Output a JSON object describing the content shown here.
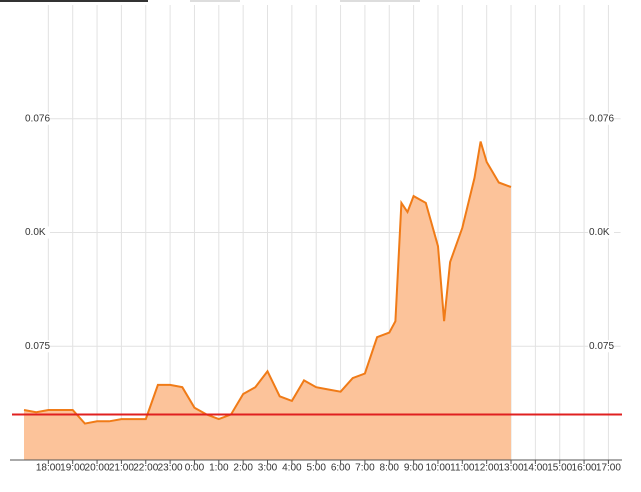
{
  "chart_data": {
    "type": "area",
    "x": [
      0,
      0.5,
      1,
      1.5,
      2,
      2.5,
      3,
      3.5,
      4,
      4.5,
      5,
      5.5,
      6,
      6.5,
      7,
      7.5,
      8,
      8.5,
      9,
      9.5,
      10,
      10.5,
      11,
      11.5,
      12,
      12.5,
      13,
      13.5,
      14,
      14.5,
      15,
      15.25,
      15.5,
      15.75,
      16,
      16.5,
      17,
      17.25,
      17.5,
      18,
      18.5,
      18.75,
      19,
      19.5,
      20
    ],
    "values": [
      0.07472,
      0.07471,
      0.07472,
      0.07472,
      0.07472,
      0.07466,
      0.07467,
      0.07467,
      0.07468,
      0.07468,
      0.07468,
      0.07483,
      0.07483,
      0.07482,
      0.07473,
      0.0747,
      0.07468,
      0.0747,
      0.07479,
      0.07482,
      0.07489,
      0.07478,
      0.07476,
      0.07485,
      0.07482,
      0.07481,
      0.0748,
      0.07486,
      0.07488,
      0.07504,
      0.07506,
      0.07511,
      0.07563,
      0.07559,
      0.07566,
      0.07563,
      0.07544,
      0.07511,
      0.07537,
      0.07552,
      0.07574,
      0.0759,
      0.07581,
      0.07572,
      0.0757
    ],
    "color": "#f07b17",
    "fill": "#fcc39a",
    "reference_line": 0.0747,
    "reference_color": "#e02020",
    "xlim": [
      0,
      24.5
    ],
    "xticks": [
      {
        "value": 1,
        "label": "18:00"
      },
      {
        "value": 2,
        "label": "19:00"
      },
      {
        "value": 3,
        "label": "20:00"
      },
      {
        "value": 4,
        "label": "21:00"
      },
      {
        "value": 5,
        "label": "22:00"
      },
      {
        "value": 6,
        "label": "23:00"
      },
      {
        "value": 7,
        "label": "0:00"
      },
      {
        "value": 8,
        "label": "1:00"
      },
      {
        "value": 9,
        "label": "2:00"
      },
      {
        "value": 10,
        "label": "3:00"
      },
      {
        "value": 11,
        "label": "4:00"
      },
      {
        "value": 12,
        "label": "5:00"
      },
      {
        "value": 13,
        "label": "6:00"
      },
      {
        "value": 14,
        "label": "7:00"
      },
      {
        "value": 15,
        "label": "8:00"
      },
      {
        "value": 16,
        "label": "9:00"
      },
      {
        "value": 17,
        "label": "10:00"
      },
      {
        "value": 18,
        "label": "11:00"
      },
      {
        "value": 19,
        "label": "12:00"
      },
      {
        "value": 20,
        "label": "13:00"
      },
      {
        "value": 21,
        "label": "14:00"
      },
      {
        "value": 22,
        "label": "15:00"
      },
      {
        "value": 23,
        "label": "16:00"
      },
      {
        "value": 24,
        "label": "17:00"
      }
    ],
    "ylim": [
      0.0745,
      0.0765
    ],
    "yticks": [
      0.075,
      {
        "value": 0.0755,
        "label": "0.0K"
      },
      0.076
    ],
    "grid": true
  }
}
